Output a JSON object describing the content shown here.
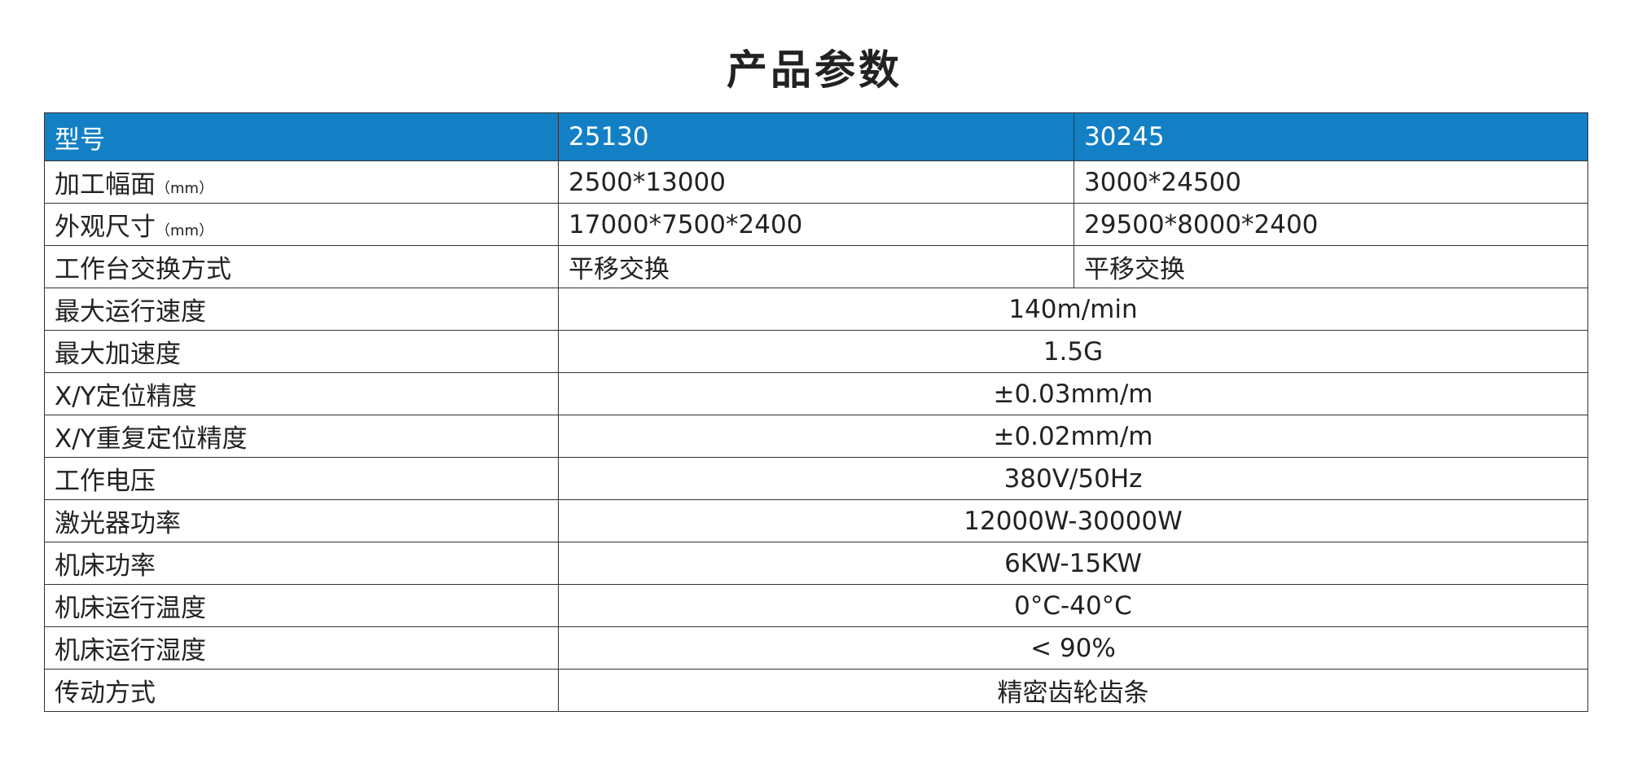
{
  "title": "产品参数",
  "header_color": "#1380c6",
  "table": {
    "header": [
      "型号",
      "25130",
      "30245"
    ],
    "rows": [
      {
        "label": "加工幅面",
        "unit": "（mm）",
        "values": [
          "2500*13000",
          "3000*24500"
        ]
      },
      {
        "label": "外观尺寸",
        "unit": "（mm）",
        "values": [
          "17000*7500*2400",
          "29500*8000*2400"
        ]
      },
      {
        "label": "工作台交换方式",
        "values": [
          "平移交换",
          "平移交换"
        ]
      },
      {
        "label": "最大运行速度",
        "value": "140m/min"
      },
      {
        "label": "最大加速度",
        "value": "1.5G"
      },
      {
        "label": "X/Y定位精度",
        "value": "±0.03mm/m"
      },
      {
        "label": "X/Y重复定位精度",
        "value": "±0.02mm/m"
      },
      {
        "label": "工作电压",
        "value": "380V/50Hz"
      },
      {
        "label": "激光器功率",
        "value": "12000W-30000W"
      },
      {
        "label": "机床功率",
        "value": "6KW-15KW"
      },
      {
        "label": "机床运行温度",
        "value": "0°C-40°C"
      },
      {
        "label": "机床运行湿度",
        "value": "< 90%"
      },
      {
        "label": "传动方式",
        "value": "精密齿轮齿条"
      }
    ]
  }
}
